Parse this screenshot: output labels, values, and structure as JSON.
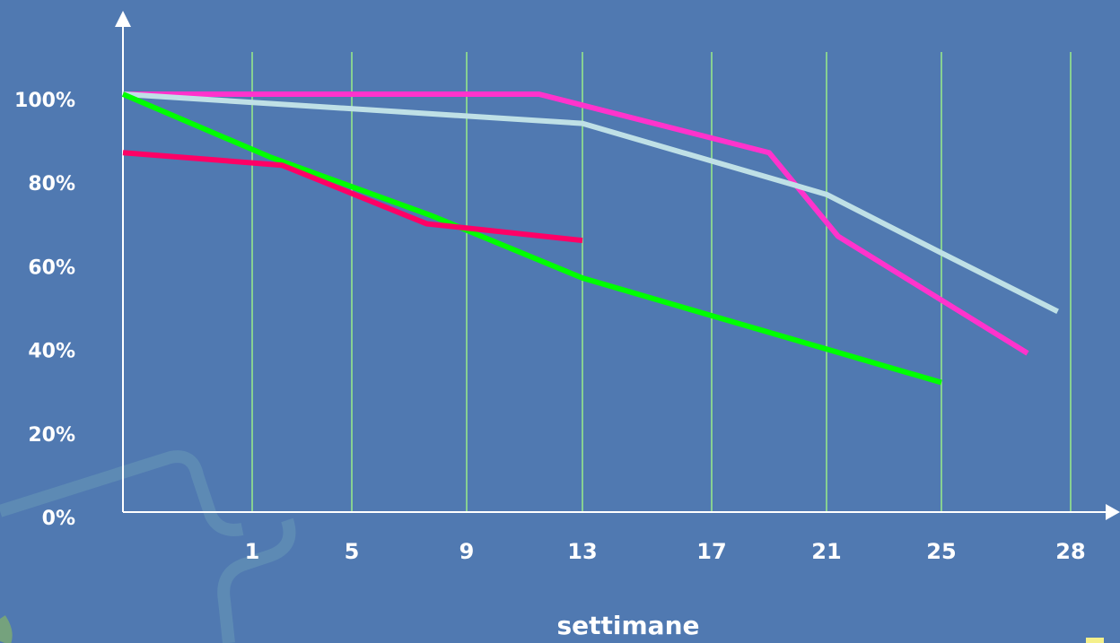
{
  "chart_data": {
    "type": "line",
    "x_label": "settimane",
    "xlim": [
      0,
      29
    ],
    "xticks": [
      1,
      5,
      9,
      13,
      17,
      21,
      25,
      28
    ],
    "ylim": [
      0,
      100
    ],
    "yticks": [
      {
        "value": 0,
        "label": "0%"
      },
      {
        "value": 20,
        "label": "20%"
      },
      {
        "value": 40,
        "label": "40%"
      },
      {
        "value": 60,
        "label": "60%"
      },
      {
        "value": 80,
        "label": "80%"
      },
      {
        "value": 100,
        "label": "100%"
      }
    ],
    "grid": true,
    "grid_color": "#99ee88",
    "series": [
      {
        "color": "#ff33cc",
        "x": [
          0,
          11.5,
          19,
          21.4,
          27
        ],
        "values": [
          100,
          100,
          86,
          66,
          38
        ]
      },
      {
        "color": "#bfe0e6",
        "x": [
          0,
          13,
          21,
          25,
          27.7
        ],
        "values": [
          100,
          93,
          76,
          62,
          48
        ]
      },
      {
        "color": "#00ff00",
        "x": [
          0,
          1.7,
          7.75,
          13,
          21,
          25
        ],
        "values": [
          100,
          85,
          71,
          56,
          39,
          31
        ]
      },
      {
        "color": "#ff0066",
        "x": [
          0,
          2.2,
          7.6,
          13
        ],
        "values": [
          86,
          83,
          69,
          65
        ]
      }
    ]
  }
}
